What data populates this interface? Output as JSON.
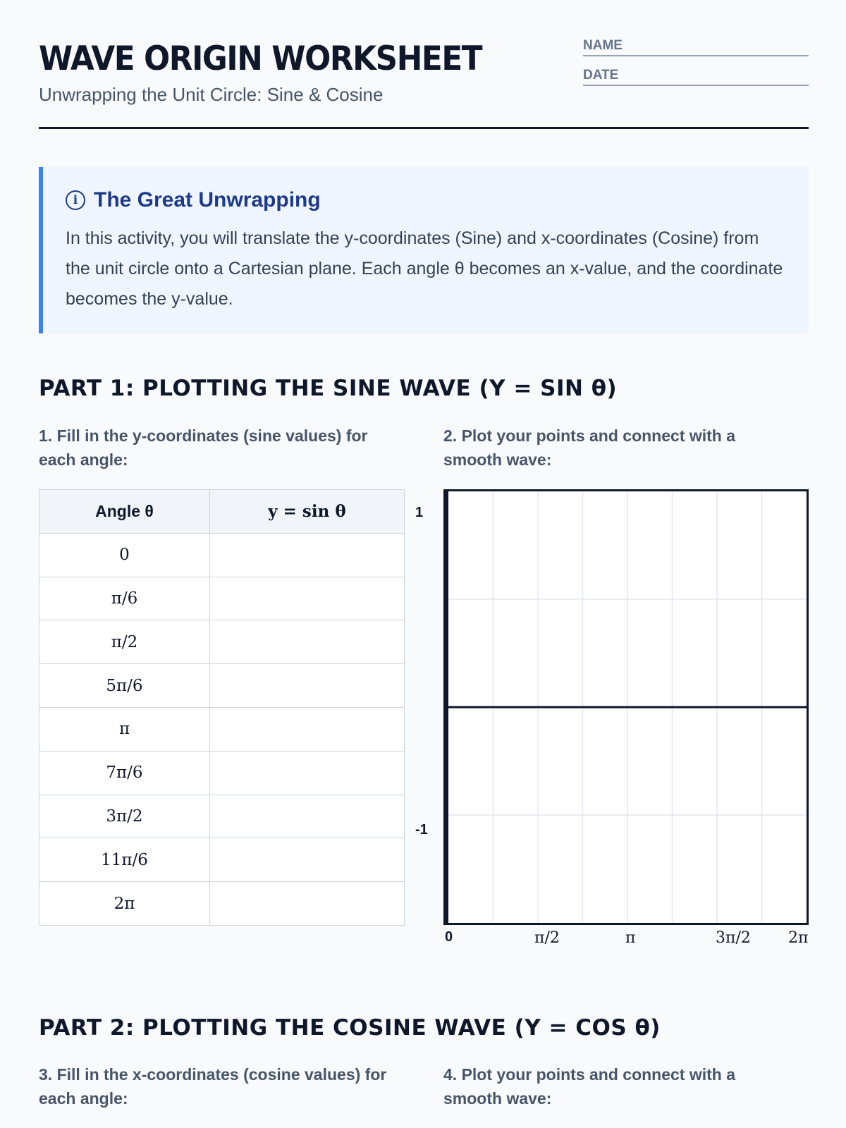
{
  "header": {
    "title": "WAVE ORIGIN WORKSHEET",
    "subtitle": "Unwrapping the Unit Circle: Sine & Cosine",
    "name_label": "NAME",
    "date_label": "DATE"
  },
  "info": {
    "icon": "info-icon",
    "title": "The Great Unwrapping",
    "body": "In this activity, you will translate the y-coordinates (Sine) and x-coordinates (Cosine) from the unit circle onto a Cartesian plane. Each angle θ becomes an x-value, and the coordinate becomes the y-value."
  },
  "part1": {
    "heading": "PART 1: PLOTTING THE SINE WAVE (Y = SIN θ)",
    "instr_table": "1. Fill in the y-coordinates (sine values) for each angle:",
    "instr_graph": "2. Plot your points and connect with a smooth wave:",
    "table": {
      "headers": [
        "Angle θ",
        "y = sin θ"
      ],
      "angles": [
        "0",
        "π/6",
        "π/2",
        "5π/6",
        "π",
        "7π/6",
        "3π/2",
        "11π/6",
        "2π"
      ]
    },
    "graph": {
      "y_labels": [
        "1",
        "-1"
      ],
      "x_labels": [
        "0",
        "π/2",
        "π",
        "3π/2",
        "2π"
      ],
      "grid_columns": 8,
      "grid_rows": 4
    }
  },
  "part2": {
    "heading": "PART 2: PLOTTING THE COSINE WAVE (Y = COS θ)",
    "instr_table": "3. Fill in the x-coordinates (cosine values) for each angle:",
    "instr_graph": "4. Plot your points and connect with a smooth wave:"
  }
}
